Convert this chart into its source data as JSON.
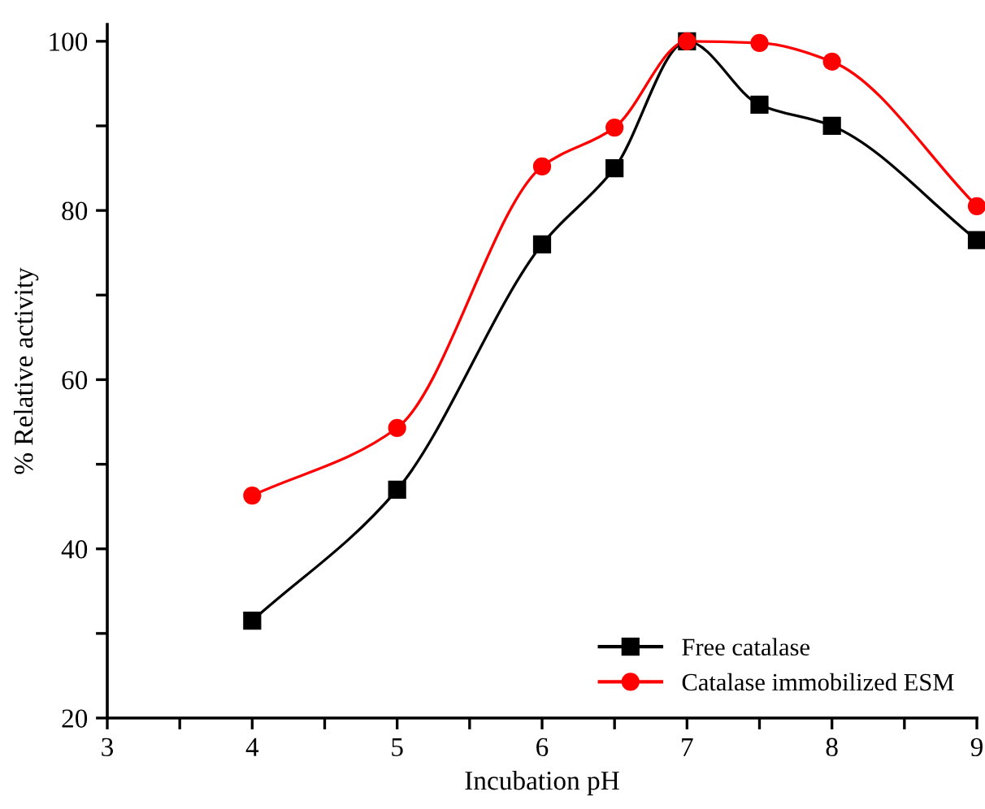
{
  "chart_data": {
    "type": "line",
    "xlabel": "Incubation pH",
    "ylabel": "% Relative activity",
    "x": [
      4,
      5,
      6,
      6.5,
      7,
      7.5,
      8,
      9
    ],
    "series": [
      {
        "name": "Free catalase",
        "color": "#000000",
        "marker": "square",
        "values": [
          31.5,
          47,
          76,
          85,
          100,
          92.5,
          90,
          76.5
        ]
      },
      {
        "name": "Catalase immobilized ESM",
        "color": "#ff0000",
        "marker": "circle",
        "values": [
          46.3,
          54.3,
          85.2,
          89.8,
          100,
          99.8,
          97.6,
          80.5
        ]
      }
    ],
    "xlim": [
      3,
      9
    ],
    "ylim": [
      20,
      102
    ],
    "xticks": [
      3,
      {
        "value": 3.5,
        "label": null
      },
      4,
      {
        "value": 4.5,
        "label": null
      },
      5,
      {
        "value": 5.5,
        "label": null
      },
      6,
      {
        "value": 6.5,
        "label": null
      },
      7,
      {
        "value": 7.5,
        "label": null
      },
      8,
      {
        "value": 8.5,
        "label": null
      },
      9
    ],
    "yticks": [
      20,
      {
        "value": 30,
        "label": null
      },
      40,
      {
        "value": 50,
        "label": null
      },
      60,
      {
        "value": 70,
        "label": null
      },
      80,
      {
        "value": 90,
        "label": null
      },
      100
    ],
    "legend": "bottom right",
    "grid": false,
    "line_style": "solid"
  }
}
